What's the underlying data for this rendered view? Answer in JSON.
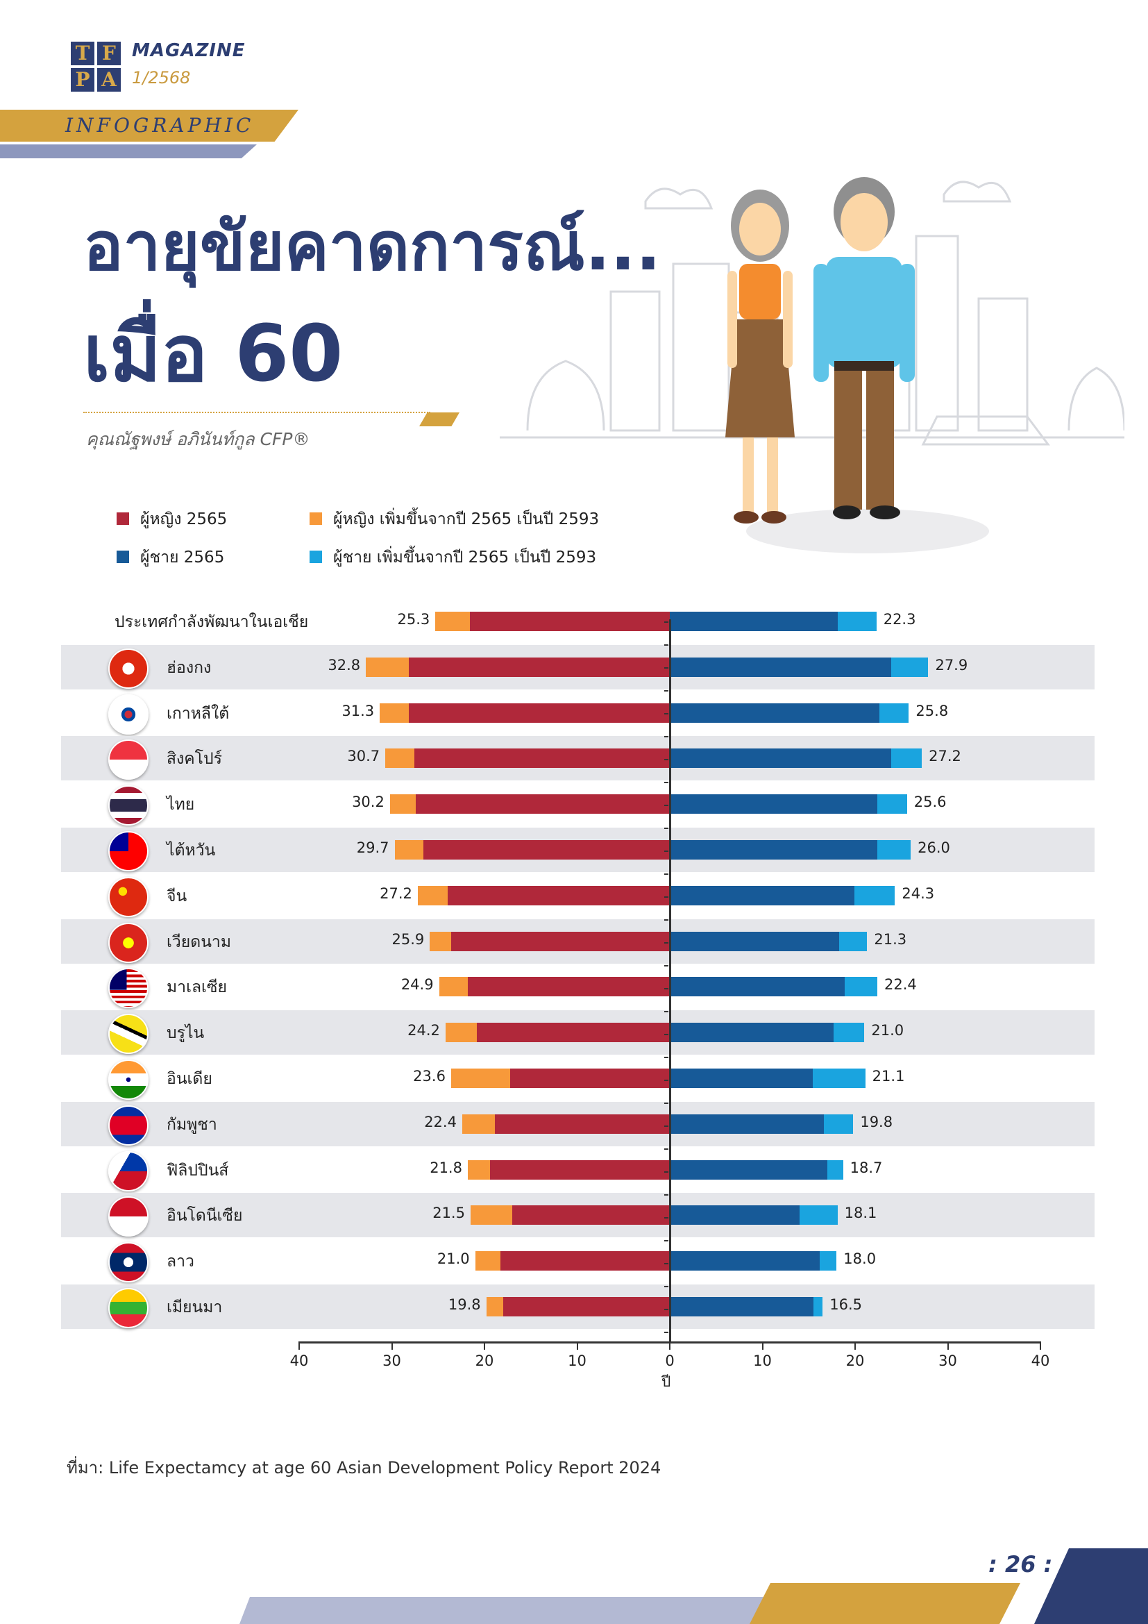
{
  "header": {
    "logo_letters": [
      "T",
      "F",
      "P",
      "A"
    ],
    "magazine": "MAGAZINE",
    "issue": "1/2568",
    "section": "INFOGRAPHIC"
  },
  "title": {
    "line1": "อายุขัยคาดการณ์...",
    "line2": "เมื่อ 60"
  },
  "author": "คุณณัฐพงษ์ อภินันท์กูล CFP®",
  "colors": {
    "female_2565": "#b0283a",
    "female_increase": "#f7993a",
    "male_2565": "#175a98",
    "male_increase": "#1aa4df",
    "navy": "#2d3e72",
    "gold": "#d4a23e"
  },
  "legend": [
    {
      "label": "ผู้หญิง 2565",
      "color": "#b0283a"
    },
    {
      "label": "ผู้หญิง เพิ่มขึ้นจากปี 2565 เป็นปี 2593",
      "color": "#f7993a"
    },
    {
      "label": "ผู้ชาย 2565",
      "color": "#175a98"
    },
    {
      "label": "ผู้ชาย เพิ่มขึ้นจากปี 2565 เป็นปี 2593",
      "color": "#1aa4df"
    }
  ],
  "chart_data": {
    "type": "bar",
    "orientation": "horizontal-butterfly",
    "xlabel": "ปี",
    "xlim": [
      -40,
      40
    ],
    "x_ticks": [
      "40",
      "30",
      "20",
      "10",
      "0",
      "10",
      "20",
      "30",
      "40"
    ],
    "categories": [
      "ประเทศกำลังพัฒนาในเอเชีย",
      "ฮ่องกง",
      "เกาหลีใต้",
      "สิงคโปร์",
      "ไทย",
      "ไต้หวัน",
      "จีน",
      "เวียดนาม",
      "มาเลเซีย",
      "บรูไน",
      "อินเดีย",
      "กัมพูชา",
      "ฟิลิปปินส์",
      "อินโดนีเซีย",
      "ลาว",
      "เมียนมา"
    ],
    "flags": [
      "none",
      "hong-kong-flag-icon",
      "south-korea-flag-icon",
      "singapore-flag-icon",
      "thailand-flag-icon",
      "taiwan-flag-icon",
      "china-flag-icon",
      "vietnam-flag-icon",
      "malaysia-flag-icon",
      "brunei-flag-icon",
      "india-flag-icon",
      "cambodia-flag-icon",
      "philippines-flag-icon",
      "indonesia-flag-icon",
      "laos-flag-icon",
      "myanmar-flag-icon"
    ],
    "series": [
      {
        "name": "ผู้หญิง 2565",
        "values": [
          21.6,
          28.2,
          28.2,
          27.6,
          27.4,
          26.6,
          24.0,
          23.6,
          21.8,
          20.8,
          17.2,
          18.9,
          19.4,
          17.0,
          18.3,
          18.0
        ]
      },
      {
        "name": "ผู้หญิง เพิ่มขึ้นจากปี 2565 เป็นปี 2593",
        "values": [
          3.7,
          4.6,
          3.1,
          3.1,
          2.8,
          3.1,
          3.2,
          2.3,
          3.1,
          3.4,
          6.4,
          3.5,
          2.4,
          4.5,
          2.7,
          1.8
        ]
      },
      {
        "name": "ผู้ชาย 2565",
        "values": [
          18.1,
          23.9,
          22.6,
          23.9,
          22.4,
          22.4,
          19.9,
          18.3,
          18.9,
          17.7,
          15.4,
          16.6,
          17.0,
          14.0,
          16.2,
          15.5
        ]
      },
      {
        "name": "ผู้ชาย เพิ่มขึ้นจากปี 2565 เป็นปี 2593",
        "values": [
          4.2,
          4.0,
          3.2,
          3.3,
          3.2,
          3.6,
          4.4,
          3.0,
          3.5,
          3.3,
          5.7,
          3.2,
          1.7,
          4.1,
          1.8,
          1.0
        ]
      }
    ],
    "female_totals": [
      "25.3",
      "32.8",
      "31.3",
      "30.7",
      "30.2",
      "29.7",
      "27.2",
      "25.9",
      "24.9",
      "24.2",
      "23.6",
      "22.4",
      "21.8",
      "21.5",
      "21.0",
      "19.8"
    ],
    "male_totals": [
      "22.3",
      "27.9",
      "25.8",
      "27.2",
      "25.6",
      "26.0",
      "24.3",
      "21.3",
      "22.4",
      "21.0",
      "21.1",
      "19.8",
      "18.7",
      "18.1",
      "18.0",
      "16.5"
    ],
    "grid": false
  },
  "source": "ที่มา: Life Expectamcy at age 60 Asian Development Policy Report 2024",
  "page_number": ": 26 :"
}
